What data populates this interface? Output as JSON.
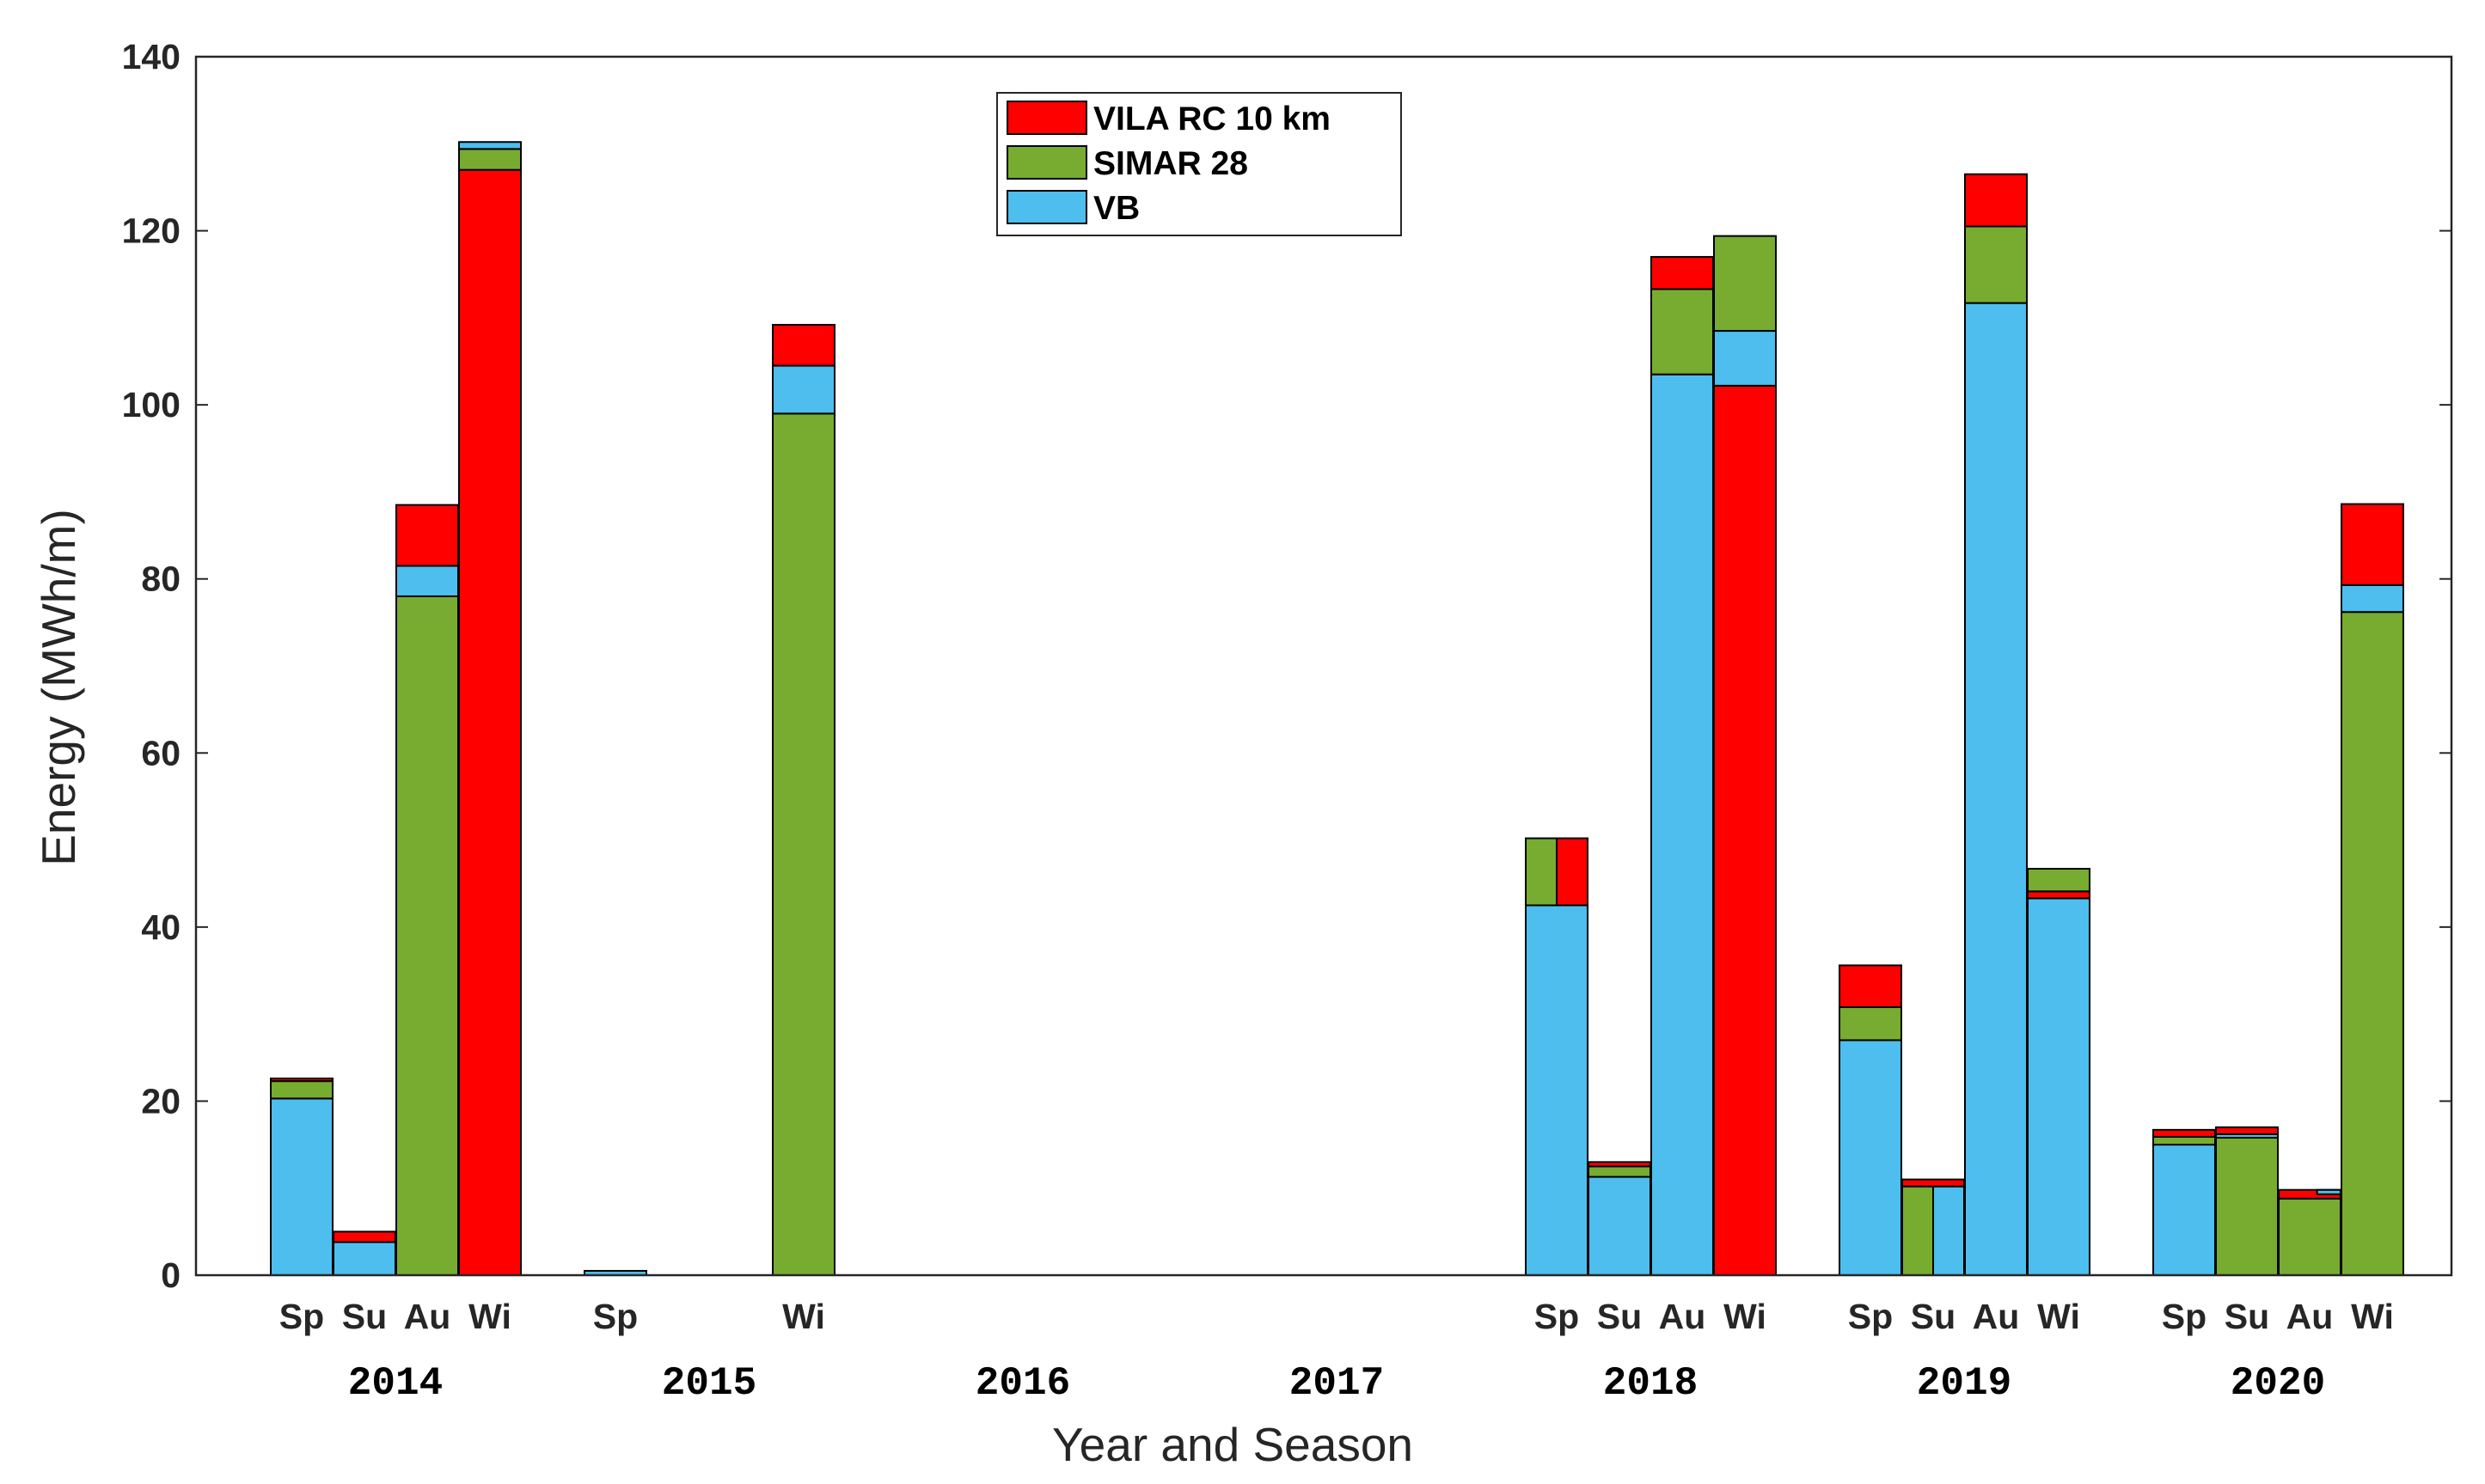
{
  "chart_data": {
    "type": "bar",
    "stacked": true,
    "title": "",
    "xlabel": "Year and Season",
    "ylabel": "Energy (MWh/m)",
    "ylim": [
      0,
      140
    ],
    "yticks": [
      "0",
      "20",
      "40",
      "60",
      "80",
      "100",
      "120",
      "140"
    ],
    "legend": {
      "placement": "top-center",
      "entries": [
        {
          "name": "VILA RC 10 km",
          "color": "#ff0000"
        },
        {
          "name": "SIMAR 28",
          "color": "#77ac30"
        },
        {
          "name": "VB",
          "color": "#4dbeee"
        }
      ]
    },
    "season_labels": [
      "Sp",
      "Su",
      "Au",
      "Wi"
    ],
    "years": [
      {
        "label": "2014",
        "seasons": [
          {
            "season": "Sp",
            "segments": [
              {
                "series": "VB",
                "value": 20.3
              },
              {
                "series": "SIMAR 28",
                "value": 2.0
              },
              {
                "series": "VILA RC 10 km",
                "value": 0.3
              }
            ]
          },
          {
            "season": "Su",
            "segments": [
              {
                "series": "VB",
                "value": 3.8
              },
              {
                "series": "VILA RC 10 km",
                "value": 1.2
              }
            ]
          },
          {
            "season": "Au",
            "segments": [
              {
                "series": "SIMAR 28",
                "value": 78.0
              },
              {
                "series": "VB",
                "value": 3.5
              },
              {
                "series": "VILA RC 10 km",
                "value": 7.0
              }
            ]
          },
          {
            "season": "Wi",
            "segments": [
              {
                "series": "VILA RC 10 km",
                "value": 127.0
              },
              {
                "series": "SIMAR 28",
                "value": 2.4
              },
              {
                "series": "VB",
                "value": 0.8
              }
            ]
          }
        ]
      },
      {
        "label": "2015",
        "seasons": [
          {
            "season": "Sp",
            "segments": [
              {
                "series": "VB",
                "value": 0.5
              }
            ]
          },
          {
            "season": "Su",
            "segments": []
          },
          {
            "season": "Au",
            "segments": []
          },
          {
            "season": "Wi",
            "segments": [
              {
                "series": "SIMAR 28",
                "value": 99.0
              },
              {
                "series": "VB",
                "value": 5.5
              },
              {
                "series": "VILA RC 10 km",
                "value": 4.7
              }
            ]
          }
        ]
      },
      {
        "label": "2016",
        "seasons": []
      },
      {
        "label": "2017",
        "seasons": []
      },
      {
        "label": "2018",
        "seasons": [
          {
            "season": "Sp",
            "segments": [
              {
                "series": "VB",
                "value": 42.5
              }
            ],
            "split": {
              "left": {
                "series": "SIMAR 28",
                "value": 7.7
              },
              "right": {
                "series": "VILA RC 10 km",
                "value": 7.7
              }
            }
          },
          {
            "season": "Su",
            "segments": [
              {
                "series": "VB",
                "value": 11.3
              },
              {
                "series": "SIMAR 28",
                "value": 1.2
              },
              {
                "series": "VILA RC 10 km",
                "value": 0.5
              }
            ]
          },
          {
            "season": "Au",
            "segments": [
              {
                "series": "VB",
                "value": 103.5
              },
              {
                "series": "SIMAR 28",
                "value": 9.8
              },
              {
                "series": "VILA RC 10 km",
                "value": 3.7
              }
            ]
          },
          {
            "season": "Wi",
            "segments": [
              {
                "series": "VILA RC 10 km",
                "value": 102.2
              },
              {
                "series": "VB",
                "value": 6.3
              },
              {
                "series": "SIMAR 28",
                "value": 10.9
              }
            ]
          }
        ]
      },
      {
        "label": "2019",
        "seasons": [
          {
            "season": "Sp",
            "segments": [
              {
                "series": "VB",
                "value": 27.0
              },
              {
                "series": "SIMAR 28",
                "value": 3.8
              },
              {
                "series": "VILA RC 10 km",
                "value": 4.8
              }
            ]
          },
          {
            "season": "Su",
            "segments": [],
            "split": {
              "left": {
                "series": "SIMAR 28",
                "value": 10.2
              },
              "right": {
                "series": "VB",
                "value": 10.2
              }
            },
            "top": [
              {
                "series": "VILA RC 10 km",
                "value": 0.8
              }
            ]
          },
          {
            "season": "Au",
            "segments": [
              {
                "series": "VB",
                "value": 111.7
              },
              {
                "series": "SIMAR 28",
                "value": 8.8
              },
              {
                "series": "VILA RC 10 km",
                "value": 6.0
              }
            ]
          },
          {
            "season": "Wi",
            "segments": [
              {
                "series": "VB",
                "value": 43.3
              },
              {
                "series": "VILA RC 10 km",
                "value": 0.8
              },
              {
                "series": "SIMAR 28",
                "value": 2.6
              }
            ]
          }
        ]
      },
      {
        "label": "2020",
        "seasons": [
          {
            "season": "Sp",
            "segments": [
              {
                "series": "VB",
                "value": 15.0
              },
              {
                "series": "SIMAR 28",
                "value": 0.9
              },
              {
                "series": "VILA RC 10 km",
                "value": 0.8
              }
            ]
          },
          {
            "season": "Su",
            "segments": [
              {
                "series": "SIMAR 28",
                "value": 15.8
              },
              {
                "series": "VB",
                "value": 0.4
              },
              {
                "series": "VILA RC 10 km",
                "value": 0.8
              }
            ]
          },
          {
            "season": "Au",
            "segments": [
              {
                "series": "SIMAR 28",
                "value": 8.8
              },
              {
                "series": "VILA RC 10 km",
                "value": 1.0
              }
            ],
            "split_top": {
              "series": "VB",
              "value": 0.5
            }
          },
          {
            "season": "Wi",
            "segments": [
              {
                "series": "SIMAR 28",
                "value": 76.2
              },
              {
                "series": "VB",
                "value": 3.1
              },
              {
                "series": "VILA RC 10 km",
                "value": 9.3
              }
            ]
          }
        ]
      }
    ]
  }
}
